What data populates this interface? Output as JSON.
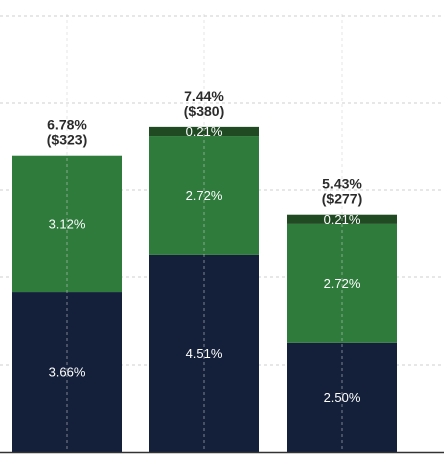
{
  "colors": {
    "base": "#14203a",
    "mid": "#2e7b3c",
    "top": "#1f4a22",
    "grid": "#cfcfcf",
    "axis": "#333333"
  },
  "chart_data": {
    "type": "bar",
    "stacked": true,
    "ylim": [
      0,
      8
    ],
    "grid": true,
    "bars": [
      {
        "total_pct": "6.78%",
        "total_amount": "($323)",
        "segments": [
          {
            "value": 3.66,
            "label": "3.66%",
            "color_key": "base"
          },
          {
            "value": 3.12,
            "label": "3.12%",
            "color_key": "mid"
          }
        ]
      },
      {
        "total_pct": "7.44%",
        "total_amount": "($380)",
        "segments": [
          {
            "value": 4.51,
            "label": "4.51%",
            "color_key": "base"
          },
          {
            "value": 2.72,
            "label": "2.72%",
            "color_key": "mid"
          },
          {
            "value": 0.21,
            "label": "0.21%",
            "color_key": "top"
          }
        ]
      },
      {
        "total_pct": "5.43%",
        "total_amount": "($277)",
        "segments": [
          {
            "value": 2.5,
            "label": "2.50%",
            "color_key": "base"
          },
          {
            "value": 2.72,
            "label": "2.72%",
            "color_key": "mid"
          },
          {
            "value": 0.21,
            "label": "0.21%",
            "color_key": "top"
          }
        ]
      }
    ]
  }
}
